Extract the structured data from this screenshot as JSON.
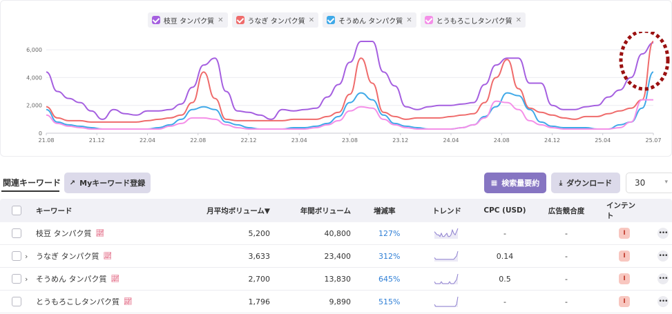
{
  "chart_data": {
    "type": "line",
    "x_ticks": [
      "21.08",
      "21.12",
      "22.04",
      "22.08",
      "22.12",
      "23.04",
      "23.08",
      "23.12",
      "24.04",
      "24.08",
      "24.12",
      "25.04",
      "25.07"
    ],
    "y_ticks": [
      "0",
      "2,000",
      "4,000",
      "6,000"
    ],
    "ylim": [
      0,
      6800
    ],
    "series": [
      {
        "name": "枝豆 タンパク質",
        "color": "#a55fe0",
        "values": [
          4400,
          3000,
          2500,
          2200,
          1600,
          1000,
          1700,
          1400,
          1300,
          1600,
          1600,
          1700,
          2100,
          3300,
          4900,
          5400,
          3000,
          1600,
          1500,
          1300,
          1000,
          1700,
          1600,
          1700,
          1800,
          2600,
          3500,
          5100,
          6600,
          6600,
          4400,
          3400,
          1900,
          1700,
          1900,
          2000,
          2000,
          2100,
          2200,
          3500,
          4900,
          5400,
          5400,
          3600,
          3600,
          2000,
          1700,
          1700,
          1900,
          2000,
          2600,
          3100,
          4000,
          5700,
          6500
        ]
      },
      {
        "name": "うなぎ タンパク質",
        "color": "#ef6b6b",
        "values": [
          1900,
          1100,
          900,
          900,
          800,
          800,
          800,
          800,
          800,
          900,
          1000,
          1100,
          1300,
          2200,
          4400,
          2500,
          1000,
          900,
          900,
          900,
          900,
          900,
          1000,
          1000,
          1000,
          1200,
          1500,
          2800,
          5400,
          3600,
          1500,
          1200,
          1000,
          1100,
          1100,
          1100,
          1200,
          1300,
          1400,
          2200,
          4000,
          5300,
          3200,
          1800,
          1500,
          1300,
          1100,
          1000,
          1200,
          1200,
          1400,
          1600,
          1800,
          2400,
          6600
        ]
      },
      {
        "name": "そうめん タンパク質",
        "color": "#3fa9e8",
        "values": [
          1700,
          800,
          600,
          500,
          400,
          300,
          300,
          300,
          300,
          300,
          400,
          600,
          1000,
          1700,
          1900,
          1700,
          800,
          600,
          400,
          300,
          300,
          300,
          400,
          400,
          500,
          700,
          1200,
          2200,
          2900,
          2400,
          1300,
          700,
          500,
          400,
          300,
          300,
          300,
          400,
          600,
          1200,
          1900,
          2900,
          2700,
          1700,
          800,
          500,
          400,
          400,
          400,
          300,
          300,
          600,
          800,
          1800,
          4400
        ]
      },
      {
        "name": "とうもろこしタンパク質",
        "color": "#f48fe8",
        "values": [
          1300,
          700,
          500,
          400,
          300,
          300,
          300,
          300,
          300,
          300,
          300,
          500,
          700,
          1100,
          1100,
          1000,
          600,
          400,
          300,
          300,
          300,
          300,
          300,
          300,
          400,
          600,
          900,
          1600,
          1900,
          1800,
          1000,
          600,
          400,
          300,
          300,
          300,
          300,
          400,
          600,
          1100,
          2300,
          2200,
          1700,
          900,
          600,
          400,
          300,
          300,
          300,
          300,
          300,
          400,
          800,
          2400,
          2400
        ]
      }
    ]
  },
  "legend": [
    {
      "label": "枝豆 タンパク質",
      "color": "#a55fe0"
    },
    {
      "label": "うなぎ タンパク質",
      "color": "#ef6b6b"
    },
    {
      "label": "そうめん タンパク質",
      "color": "#3fa9e8"
    },
    {
      "label": "とうもろこしタンパク質",
      "color": "#f48fe8"
    }
  ],
  "toolbar": {
    "tab_label": "関連キーワード",
    "my_keyword_label": "Myキーワード登録",
    "summary_label": "検索量要約",
    "download_label": "ダウンロード",
    "page_size": "30"
  },
  "table": {
    "headers": {
      "keyword": "キーワード",
      "monthly": "月平均ボリューム▼",
      "yearly": "年間ボリューム",
      "growth": "増減率",
      "trend": "トレンド",
      "cpc": "CPC (USD)",
      "ad": "広告競合度",
      "intent": "インテント"
    },
    "rows": [
      {
        "keyword": "枝豆 タンパク質",
        "monthly": "5,200",
        "yearly": "40,800",
        "growth": "127%",
        "cpc": "-",
        "ad": "-",
        "intent": "I",
        "expandable": false,
        "trend": [
          4,
          3,
          2,
          2,
          1,
          3,
          1,
          1,
          2,
          3,
          1,
          1,
          2,
          5,
          3,
          2,
          4,
          6
        ]
      },
      {
        "keyword": "うなぎ タンパク質",
        "monthly": "3,633",
        "yearly": "23,400",
        "growth": "312%",
        "cpc": "0.14",
        "ad": "-",
        "intent": "I",
        "expandable": true,
        "trend": [
          2,
          1,
          1,
          1,
          1,
          1,
          1,
          1,
          1,
          1,
          1,
          1,
          1,
          1,
          1,
          2,
          3,
          6
        ]
      },
      {
        "keyword": "そうめん タンパク質",
        "monthly": "2,700",
        "yearly": "13,830",
        "growth": "645%",
        "cpc": "0.5",
        "ad": "-",
        "intent": "I",
        "expandable": true,
        "trend": [
          1,
          0,
          0,
          0,
          0,
          1,
          0,
          0,
          0,
          0,
          0,
          1,
          0,
          0,
          0,
          1,
          2,
          5
        ]
      },
      {
        "keyword": "とうもろこしタンパク質",
        "monthly": "1,796",
        "yearly": "9,890",
        "growth": "515%",
        "cpc": "-",
        "ad": "-",
        "intent": "I",
        "expandable": false,
        "trend": [
          1,
          0,
          0,
          0,
          0,
          0,
          0,
          0,
          0,
          0,
          0,
          0,
          0,
          0,
          0,
          0,
          1,
          5
        ]
      }
    ]
  }
}
